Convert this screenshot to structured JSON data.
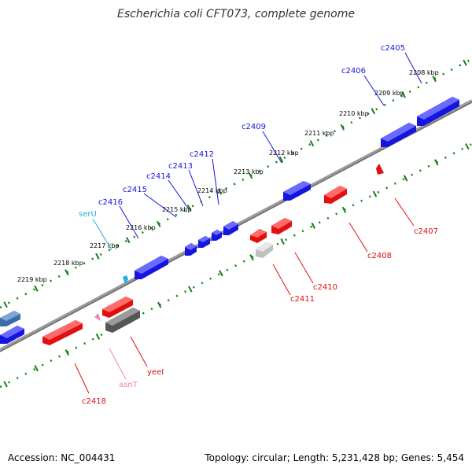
{
  "title": "Escherichia coli CFT073, complete genome",
  "accession_text": "Accession: NC_004431",
  "summary_text": "Topology: circular; Length: 5,231,428 bp; Genes: 5,454",
  "colors": {
    "forward": "#1010e0",
    "reverse": "#e01010",
    "trna_forward": "#20b0e0",
    "trna_reverse": "#f080b0",
    "pseudo": "#707070",
    "backbone": "#808080",
    "ticks": "#108010"
  },
  "ticks": [
    {
      "label": "2208 kbp"
    },
    {
      "label": "2209 kbp"
    },
    {
      "label": "2210 kbp"
    },
    {
      "label": "2211 kbp"
    },
    {
      "label": "2212 kbp"
    },
    {
      "label": "2213 kbp"
    },
    {
      "label": "2214 kbp"
    },
    {
      "label": "2215 kbp"
    },
    {
      "label": "2216 kbp"
    },
    {
      "label": "2217 kbp"
    },
    {
      "label": "2218 kbp"
    },
    {
      "label": "2219 kbp"
    }
  ],
  "forward_labels": [
    "c2405",
    "c2406",
    "c2409",
    "c2412",
    "c2413",
    "c2414",
    "c2415",
    "c2416",
    "serU"
  ],
  "reverse_labels": [
    "c2407",
    "c2408",
    "c2410",
    "c2411",
    "yeeI",
    "asnT",
    "c2418"
  ]
}
